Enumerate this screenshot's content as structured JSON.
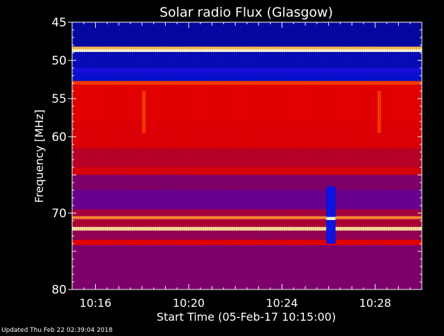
{
  "chart_data": {
    "type": "heatmap",
    "title": "Solar radio Flux (Glasgow)",
    "xlabel": "Start Time (05-Feb-17 10:15:00)",
    "ylabel": "Frequency [MHz]",
    "footer": "Updated Thu Feb 22 02:39:04 2018",
    "x_axis": {
      "start_minutes_after_10": 15.0,
      "end_minutes_after_10": 30.0,
      "ticks": [
        {
          "label": "10:16",
          "minute": 16
        },
        {
          "label": "10:20",
          "minute": 20
        },
        {
          "label": "10:24",
          "minute": 24
        },
        {
          "label": "10:28",
          "minute": 28
        }
      ]
    },
    "y_axis": {
      "range_mhz": [
        45,
        80
      ],
      "reversed": true,
      "ticks": [
        45,
        50,
        55,
        60,
        70,
        80
      ],
      "tick_labels": [
        "45",
        "50",
        "55",
        "60",
        "70",
        "80"
      ]
    },
    "bands": [
      {
        "from": 45.0,
        "to": 48.2,
        "intensity": 0.02
      },
      {
        "from": 48.2,
        "to": 48.55,
        "intensity": 0.9
      },
      {
        "from": 48.55,
        "to": 48.9,
        "intensity": 1.0
      },
      {
        "from": 48.9,
        "to": 51.0,
        "intensity": 0.03
      },
      {
        "from": 51.0,
        "to": 51.6,
        "intensity": 0.08
      },
      {
        "from": 51.6,
        "to": 52.7,
        "intensity": 0.04
      },
      {
        "from": 52.7,
        "to": 53.2,
        "intensity": 0.75
      },
      {
        "from": 53.2,
        "to": 58.0,
        "intensity": 0.6
      },
      {
        "from": 58.0,
        "to": 61.5,
        "intensity": 0.58
      },
      {
        "from": 61.5,
        "to": 64.0,
        "intensity": 0.45
      },
      {
        "from": 64.0,
        "to": 65.0,
        "intensity": 0.55
      },
      {
        "from": 65.0,
        "to": 67.0,
        "intensity": 0.3
      },
      {
        "from": 67.0,
        "to": 69.5,
        "intensity": 0.25
      },
      {
        "from": 69.5,
        "to": 70.4,
        "intensity": 0.4
      },
      {
        "from": 70.4,
        "to": 70.8,
        "intensity": 0.85
      },
      {
        "from": 70.8,
        "to": 71.8,
        "intensity": 0.42
      },
      {
        "from": 71.8,
        "to": 72.3,
        "intensity": 0.95
      },
      {
        "from": 72.3,
        "to": 73.5,
        "intensity": 0.35
      },
      {
        "from": 73.5,
        "to": 74.2,
        "intensity": 0.6
      },
      {
        "from": 74.2,
        "to": 80.0,
        "intensity": 0.3
      }
    ],
    "bursts": [
      {
        "start": 25.9,
        "end": 26.3,
        "freq_from": 66.5,
        "freq_to": 74.0,
        "intensity": 0.05
      },
      {
        "start": 25.9,
        "end": 26.3,
        "freq_from": 70.5,
        "freq_to": 70.9,
        "intensity": 1.0
      },
      {
        "start": 18.0,
        "end": 18.15,
        "freq_from": 54.0,
        "freq_to": 59.5,
        "intensity": 0.75
      },
      {
        "start": 28.1,
        "end": 28.25,
        "freq_from": 54.0,
        "freq_to": 59.5,
        "intensity": 0.75
      }
    ]
  }
}
